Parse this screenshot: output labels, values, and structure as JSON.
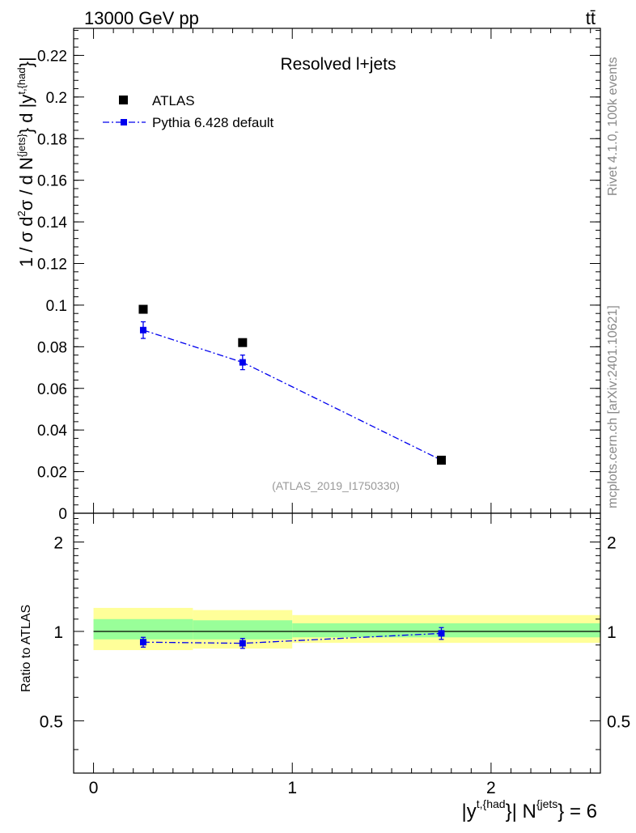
{
  "header": {
    "energy_label": "13000 GeV pp",
    "process_label": "tt̄"
  },
  "side_labels": {
    "rivet": "Rivet 4.1.0,  100k events",
    "mcplots": "mcplots.cern.ch [arXiv:2401.10621]"
  },
  "colors": {
    "data": "#000000",
    "mc": "#0000ee",
    "band_inner": "#99ff99",
    "band_outer": "#ffff99",
    "watermark": "#999999"
  },
  "chart_data": [
    {
      "panel": "main",
      "type": "scatter",
      "title": "Resolved l+jets",
      "watermark": "(ATLAS_2019_I1750330)",
      "ylabel": "1 / σ d²σ / d N^{jets} d |y^{t,{had}}|",
      "xlim": [
        -0.1,
        2.55
      ],
      "ylim": [
        0,
        0.233
      ],
      "yticks": [
        0,
        0.02,
        0.04,
        0.06,
        0.08,
        0.1,
        0.12,
        0.14,
        0.16,
        0.18,
        0.2,
        0.22
      ],
      "ytick_labels": [
        "0",
        "0.02",
        "0.04",
        "0.06",
        "0.08",
        "0.1",
        "0.12",
        "0.14",
        "0.16",
        "0.18",
        "0.2",
        "0.22"
      ],
      "legend_position": "top-left",
      "series": [
        {
          "name": "ATLAS",
          "style": "marker",
          "x": [
            0.25,
            0.75,
            1.75
          ],
          "y": [
            0.098,
            0.082,
            0.0255
          ],
          "yerr": [
            0.0,
            0.0,
            0.0
          ]
        },
        {
          "name": "Pythia 6.428 default",
          "style": "dash-dot",
          "x": [
            0.25,
            0.75,
            1.75
          ],
          "y": [
            0.088,
            0.0725,
            0.0255
          ],
          "yerr": [
            0.004,
            0.0035,
            0.001
          ]
        }
      ]
    },
    {
      "panel": "ratio",
      "type": "scatter",
      "ylabel": "Ratio to ATLAS",
      "xlabel": "|y^{t,{had}}| N^{jets} = 6",
      "xlim": [
        -0.1,
        2.55
      ],
      "ylim": [
        0.3333,
        2.5
      ],
      "scale": "log",
      "xticks": [
        0,
        1,
        2
      ],
      "xtick_labels": [
        "0",
        "1",
        "2"
      ],
      "yticks": [
        0.5,
        1,
        2
      ],
      "ytick_labels": [
        "0.5",
        "1",
        "2"
      ],
      "bands": [
        {
          "x": [
            0,
            0.5
          ],
          "inner": [
            0.94,
            1.1
          ],
          "outer": [
            0.865,
            1.2
          ]
        },
        {
          "x": [
            0.5,
            1.0
          ],
          "inner": [
            0.94,
            1.09
          ],
          "outer": [
            0.875,
            1.18
          ]
        },
        {
          "x": [
            1.0,
            2.55
          ],
          "inner": [
            0.955,
            1.065
          ],
          "outer": [
            0.915,
            1.135
          ]
        }
      ],
      "series": [
        {
          "name": "Pythia 6.428 default",
          "x": [
            0.25,
            0.75,
            1.75
          ],
          "y": [
            0.92,
            0.912,
            0.985
          ],
          "yerr": [
            0.035,
            0.035,
            0.045
          ]
        }
      ]
    }
  ]
}
